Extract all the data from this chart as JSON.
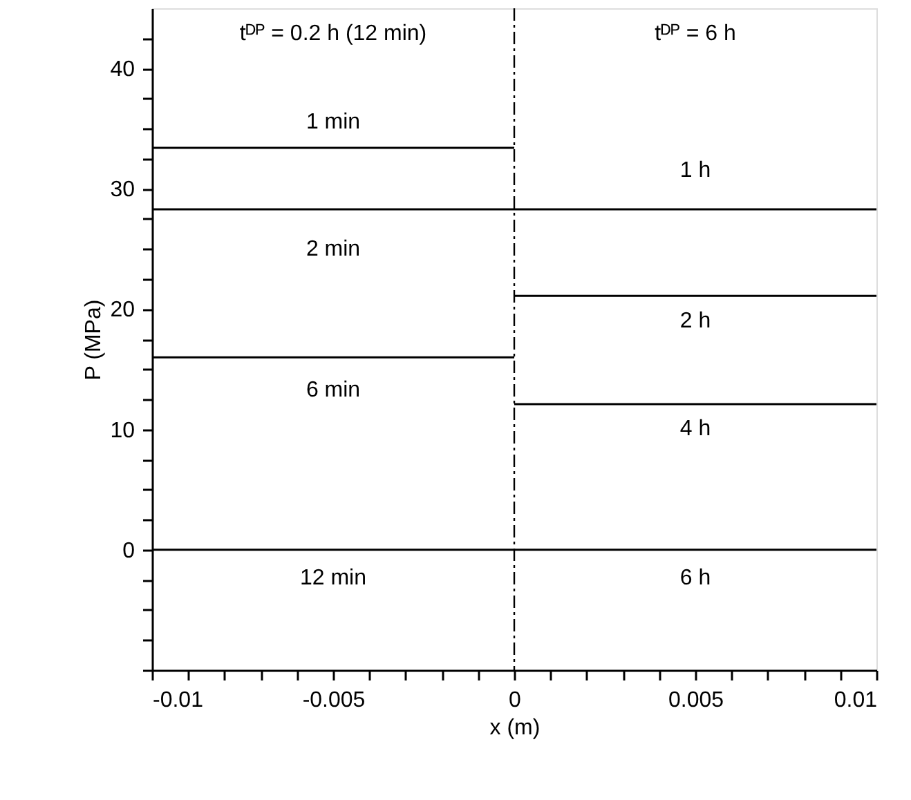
{
  "chart_data": {
    "type": "line",
    "xlabel": "x (m)",
    "ylabel": "P (MPa)",
    "xlim": [
      -0.01,
      0.01
    ],
    "xticks": [
      -0.01,
      {
        "value": -0.009,
        "label": null
      },
      {
        "value": -0.008,
        "label": null
      },
      {
        "value": -0.007,
        "label": null
      },
      {
        "value": -0.006,
        "label": null
      },
      -0.005,
      {
        "value": -0.004,
        "label": null
      },
      {
        "value": -0.003,
        "label": null
      },
      {
        "value": -0.002,
        "label": null
      },
      {
        "value": -0.001,
        "label": null
      },
      0,
      {
        "value": 0.001,
        "label": null
      },
      {
        "value": 0.002,
        "label": null
      },
      {
        "value": 0.003,
        "label": null
      },
      {
        "value": 0.004,
        "label": null
      },
      0.005,
      {
        "value": 0.006,
        "label": null
      },
      {
        "value": 0.007,
        "label": null
      },
      {
        "value": 0.008,
        "label": null
      },
      {
        "value": 0.009,
        "label": null
      },
      0.01
    ],
    "ylim": [
      -10,
      45
    ],
    "yticks": [
      {
        "value": -10,
        "label": null
      },
      {
        "value": -7.5,
        "label": null
      },
      {
        "value": -5,
        "label": null
      },
      {
        "value": -2.5,
        "label": null
      },
      0,
      {
        "value": 2.5,
        "label": null
      },
      {
        "value": 5,
        "label": null
      },
      {
        "value": 7.5,
        "label": null
      },
      10,
      {
        "value": 12.5,
        "label": null
      },
      {
        "value": 15,
        "label": null
      },
      {
        "value": 17.5,
        "label": null
      },
      20,
      {
        "value": 22.5,
        "label": null
      },
      {
        "value": 25,
        "label": null
      },
      {
        "value": 27.5,
        "label": null
      },
      30,
      {
        "value": 32.5,
        "label": null
      },
      {
        "value": 35,
        "label": null
      },
      {
        "value": 37.5,
        "label": null
      },
      40,
      {
        "value": 42.5,
        "label": null
      }
    ],
    "grid": false,
    "marker": "none",
    "line_style": "solid",
    "series": [
      {
        "color": "#000000",
        "x": [
          -0.01,
          0
        ],
        "values": [
          33.4,
          33.4
        ]
      },
      {
        "color": "#000000",
        "x": [
          -0.01,
          0.01
        ],
        "values": [
          28.3,
          28.3
        ]
      },
      {
        "color": "#000000",
        "x": [
          -0.01,
          0
        ],
        "values": [
          16.0,
          16.0
        ]
      },
      {
        "color": "#000000",
        "x": [
          -0.01,
          0.01
        ],
        "values": [
          0,
          0
        ]
      },
      {
        "color": "#000000",
        "x": [
          0,
          0.01
        ],
        "values": [
          21.1,
          21.1
        ]
      },
      {
        "color": "#000000",
        "x": [
          0,
          0.01
        ],
        "values": [
          12.1,
          12.1
        ]
      }
    ],
    "ref_lines": [
      {
        "axis": "x",
        "value": 0,
        "color": "#000000",
        "line_style": "dashed"
      }
    ],
    "annotations": [
      "tᴰᴾ = 0.2 h (12 min)",
      "tᴰᴾ = 6 h",
      "1 min",
      "2 min",
      "6 min",
      "12 min",
      "1 h",
      "2 h",
      "4 h",
      "6 h"
    ]
  }
}
